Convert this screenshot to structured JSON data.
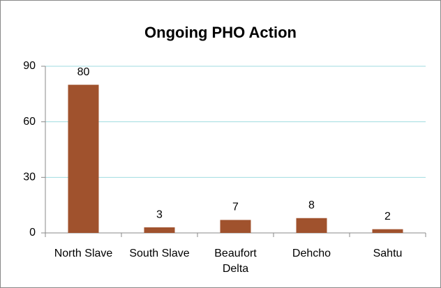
{
  "chart_data": {
    "type": "bar",
    "title": "Ongoing PHO Action",
    "categories": [
      "North Slave",
      "South Slave",
      "Beaufort Delta",
      "Dehcho",
      "Sahtu"
    ],
    "values": [
      80,
      3,
      7,
      8,
      2
    ],
    "color": "#a0522d",
    "ylim": [
      0,
      90
    ],
    "yticks": [
      0,
      30,
      60,
      90
    ],
    "grid": true,
    "grid_color": "#9fdbe0"
  }
}
